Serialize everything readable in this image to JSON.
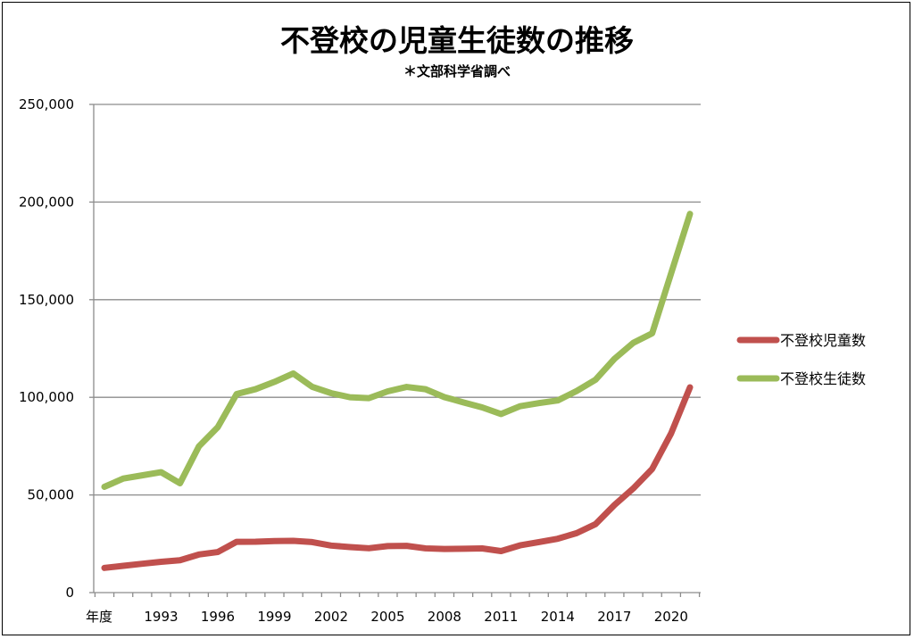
{
  "chart_data": {
    "type": "line",
    "title": "不登校の児童生徒数の推移",
    "subtitle": "＊文部科学省調べ",
    "xlabel": "年度",
    "ylabel": "",
    "ylim": [
      0,
      250000
    ],
    "yticks": [
      0,
      50000,
      100000,
      150000,
      200000,
      250000
    ],
    "ytick_labels": [
      "0",
      "50,000",
      "100,000",
      "150,000",
      "200,000",
      "250,000"
    ],
    "grid": true,
    "legend_position": "right",
    "categories": [
      1990,
      1991,
      1992,
      1993,
      1994,
      1995,
      1996,
      1997,
      1998,
      1999,
      2000,
      2001,
      2002,
      2003,
      2004,
      2005,
      2006,
      2007,
      2008,
      2009,
      2010,
      2011,
      2012,
      2013,
      2014,
      2015,
      2016,
      2017,
      2018,
      2019,
      2020,
      2021
    ],
    "xtick_labels": [
      "1993",
      "1996",
      "1999",
      "2002",
      "2005",
      "2008",
      "2011",
      "2014",
      "2017",
      "2020"
    ],
    "series": [
      {
        "name": "不登校児童数",
        "color": "#c0504d",
        "values": [
          12645,
          13710,
          14769,
          15786,
          16569,
          19498,
          20765,
          26017,
          26047,
          26373,
          26511,
          25869,
          24077,
          23318,
          22709,
          23825,
          23927,
          22652,
          22327,
          22463,
          22622,
          21243,
          24175,
          25864,
          27583,
          30448,
          35032,
          44841,
          53350,
          63350,
          81498,
          105112
        ]
      },
      {
        "name": "不登校生徒数",
        "color": "#9bbb59",
        "values": [
          54172,
          58421,
          60039,
          61663,
          56000,
          74853,
          84701,
          101675,
          104180,
          107913,
          112211,
          105383,
          102149,
          100040,
          99578,
          103069,
          105328,
          104153,
          100105,
          97428,
          94836,
          91446,
          95442,
          97033,
          98408,
          103235,
          108999,
          119687,
          127922,
          132777,
          163442,
          193936
        ]
      }
    ]
  }
}
